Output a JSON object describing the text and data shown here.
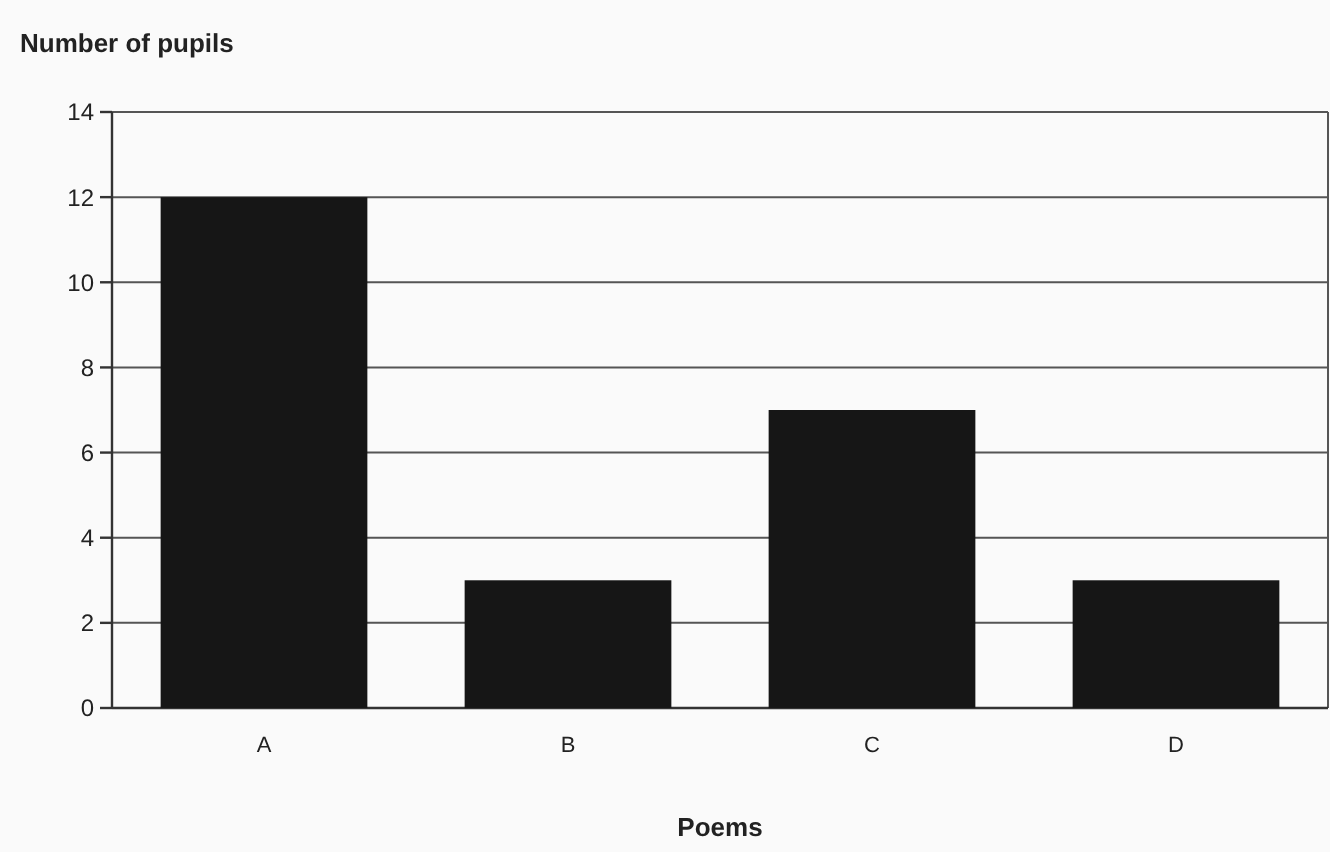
{
  "chart_data": {
    "type": "bar",
    "xlabel": "Poems",
    "ylabel": "Number of pupils",
    "categories": [
      "A",
      "B",
      "C",
      "D"
    ],
    "values": [
      12,
      3,
      7,
      3
    ],
    "color": "#161616",
    "ylim": [
      0,
      14
    ],
    "yticks": [
      0,
      2,
      4,
      6,
      8,
      10,
      12,
      14
    ],
    "grid": "y"
  }
}
